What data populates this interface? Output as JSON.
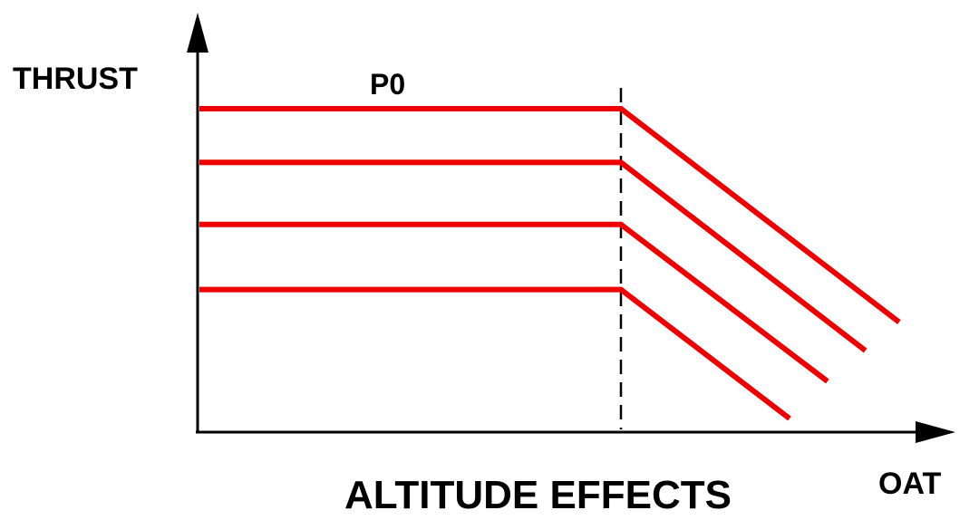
{
  "chart_data": {
    "type": "line",
    "title": "ALTITUDE EFFECTS",
    "xlabel": "OAT",
    "ylabel": "THRUST",
    "series": [
      {
        "name": "P0",
        "points": [
          [
            0.0,
            1.0
          ],
          [
            1.0,
            1.0
          ],
          [
            1.66,
            0.34
          ]
        ]
      },
      {
        "name": "",
        "points": [
          [
            0.0,
            0.834
          ],
          [
            1.0,
            0.834
          ],
          [
            1.58,
            0.252
          ]
        ]
      },
      {
        "name": "",
        "points": [
          [
            0.0,
            0.642
          ],
          [
            1.0,
            0.642
          ],
          [
            1.49,
            0.157
          ]
        ]
      },
      {
        "name": "",
        "points": [
          [
            0.0,
            0.441
          ],
          [
            1.0,
            0.441
          ],
          [
            1.4,
            0.042
          ]
        ]
      }
    ],
    "reference_line": {
      "x": 1.0,
      "style": "dashed"
    },
    "colors": {
      "series": "#ee0000",
      "axes": "#000000"
    },
    "grid": false
  }
}
